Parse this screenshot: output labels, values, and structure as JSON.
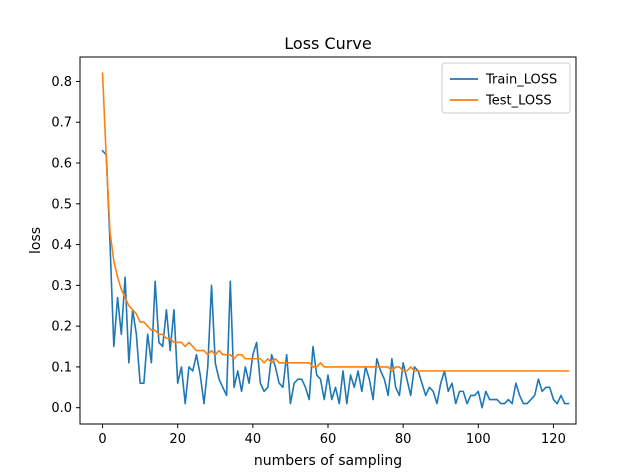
{
  "chart_data": {
    "type": "line",
    "title": "Loss Curve",
    "xlabel": "numbers of sampling",
    "ylabel": "loss",
    "xlim": [
      -6,
      126
    ],
    "ylim": [
      -0.04,
      0.86
    ],
    "xticks": [
      0,
      20,
      40,
      60,
      80,
      100,
      120
    ],
    "yticks": [
      0.0,
      0.1,
      0.2,
      0.3,
      0.4,
      0.5,
      0.6,
      0.7,
      0.8
    ],
    "legend_position": "top-right",
    "series": [
      {
        "name": "Train_LOSS",
        "color": "#1f77b4",
        "values": [
          0.63,
          0.62,
          0.4,
          0.15,
          0.27,
          0.18,
          0.32,
          0.11,
          0.24,
          0.18,
          0.06,
          0.06,
          0.18,
          0.11,
          0.31,
          0.16,
          0.15,
          0.24,
          0.14,
          0.24,
          0.06,
          0.1,
          0.01,
          0.1,
          0.09,
          0.13,
          0.08,
          0.01,
          0.1,
          0.3,
          0.11,
          0.07,
          0.05,
          0.03,
          0.31,
          0.05,
          0.09,
          0.04,
          0.1,
          0.06,
          0.13,
          0.16,
          0.06,
          0.04,
          0.05,
          0.13,
          0.1,
          0.06,
          0.05,
          0.13,
          0.01,
          0.06,
          0.07,
          0.07,
          0.05,
          0.02,
          0.15,
          0.08,
          0.07,
          0.02,
          0.08,
          0.02,
          0.05,
          0.01,
          0.09,
          0.01,
          0.08,
          0.05,
          0.09,
          0.04,
          0.1,
          0.07,
          0.02,
          0.12,
          0.09,
          0.07,
          0.03,
          0.12,
          0.05,
          0.03,
          0.11,
          0.07,
          0.03,
          0.1,
          0.09,
          0.06,
          0.03,
          0.05,
          0.04,
          0.01,
          0.06,
          0.09,
          0.04,
          0.06,
          0.01,
          0.04,
          0.04,
          0.01,
          0.03,
          0.03,
          0.04,
          0.0,
          0.04,
          0.02,
          0.02,
          0.02,
          0.01,
          0.01,
          0.02,
          0.01,
          0.06,
          0.03,
          0.01,
          0.01,
          0.02,
          0.03,
          0.07,
          0.04,
          0.05,
          0.05,
          0.02,
          0.01,
          0.03,
          0.01,
          0.01
        ]
      },
      {
        "name": "Test_LOSS",
        "color": "#ff7f0e",
        "values": [
          0.82,
          0.61,
          0.43,
          0.36,
          0.32,
          0.29,
          0.27,
          0.25,
          0.24,
          0.23,
          0.21,
          0.21,
          0.2,
          0.19,
          0.19,
          0.18,
          0.18,
          0.17,
          0.17,
          0.16,
          0.16,
          0.16,
          0.15,
          0.16,
          0.15,
          0.14,
          0.14,
          0.14,
          0.13,
          0.14,
          0.13,
          0.14,
          0.13,
          0.13,
          0.13,
          0.12,
          0.13,
          0.13,
          0.12,
          0.12,
          0.12,
          0.12,
          0.12,
          0.11,
          0.12,
          0.11,
          0.12,
          0.11,
          0.11,
          0.11,
          0.11,
          0.11,
          0.11,
          0.11,
          0.11,
          0.11,
          0.1,
          0.1,
          0.11,
          0.1,
          0.1,
          0.1,
          0.1,
          0.1,
          0.1,
          0.1,
          0.1,
          0.1,
          0.1,
          0.1,
          0.1,
          0.1,
          0.1,
          0.1,
          0.1,
          0.1,
          0.1,
          0.09,
          0.1,
          0.1,
          0.09,
          0.09,
          0.1,
          0.09,
          0.09,
          0.09,
          0.09,
          0.09,
          0.09,
          0.09,
          0.09,
          0.09,
          0.09,
          0.09,
          0.09,
          0.09,
          0.09,
          0.09,
          0.09,
          0.09,
          0.09,
          0.09,
          0.09,
          0.09,
          0.09,
          0.09,
          0.09,
          0.09,
          0.09,
          0.09,
          0.09,
          0.09,
          0.09,
          0.09,
          0.09,
          0.09,
          0.09,
          0.09,
          0.09,
          0.09,
          0.09,
          0.09,
          0.09,
          0.09,
          0.09
        ]
      }
    ]
  }
}
